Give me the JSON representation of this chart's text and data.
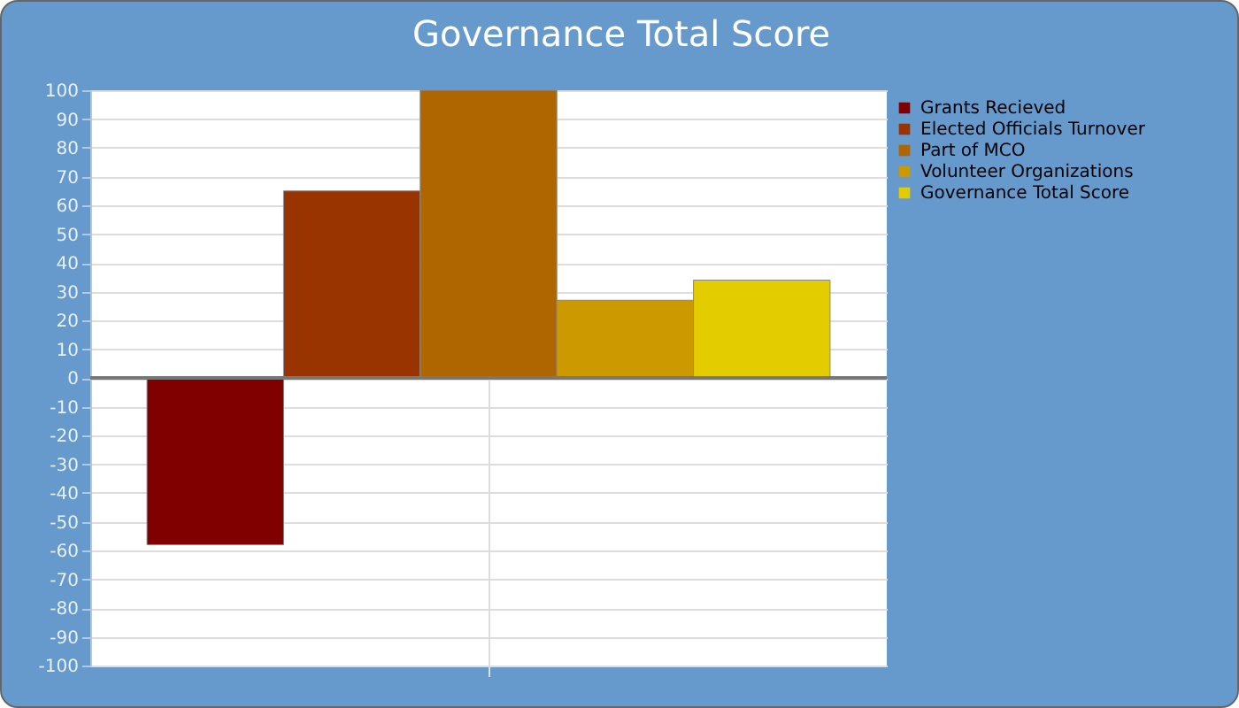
{
  "chart_data": {
    "type": "bar",
    "title": "Governance Total Score",
    "categories": [
      null
    ],
    "series": [
      {
        "name": "Grants Recieved",
        "color": "#800000",
        "values": [
          -58
        ]
      },
      {
        "name": "Elected Officials Turnover",
        "color": "#993300",
        "values": [
          65
        ]
      },
      {
        "name": "Part of MCO",
        "color": "#b06600",
        "values": [
          100
        ]
      },
      {
        "name": "Volunteer Organizations",
        "color": "#cc9900",
        "values": [
          27
        ]
      },
      {
        "name": "Governance Total Score",
        "color": "#e3cc00",
        "values": [
          34
        ]
      }
    ],
    "ylim": [
      -100,
      100
    ],
    "yticks": [
      -100,
      -90,
      -80,
      -70,
      -60,
      -50,
      -40,
      -30,
      -20,
      -10,
      0,
      10,
      20,
      30,
      40,
      50,
      60,
      70,
      80,
      90,
      100
    ],
    "grid": true,
    "legend": "top right",
    "tick_labels": "y"
  }
}
